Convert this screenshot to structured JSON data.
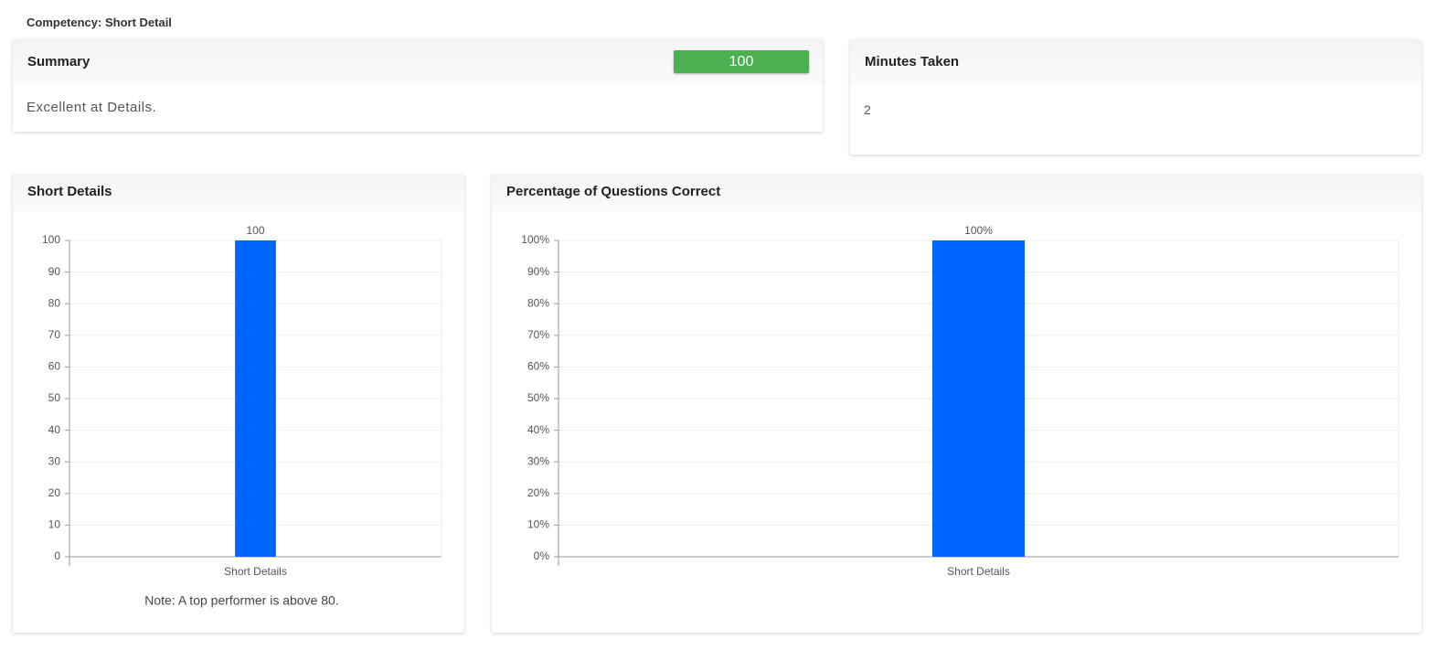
{
  "header": {
    "title": "Competency: Short Detail"
  },
  "summary": {
    "title": "Summary",
    "score": 100,
    "text": "Excellent at Details."
  },
  "minutes": {
    "title": "Minutes Taken",
    "value": 2
  },
  "chart_data": [
    {
      "type": "bar",
      "title": "Short Details",
      "categories": [
        "Short Details"
      ],
      "values": [
        100
      ],
      "color": "#0066ff",
      "ylim": [
        0,
        100
      ],
      "yticks": [
        0,
        10,
        20,
        30,
        40,
        50,
        60,
        70,
        80,
        90,
        100
      ],
      "grid": true,
      "note": "Note: A top performer is above 80."
    },
    {
      "type": "bar",
      "title": "Percentage of Questions Correct",
      "categories": [
        "Short Details"
      ],
      "values": [
        100
      ],
      "value_labels": [
        "100%"
      ],
      "color": "#0066ff",
      "ylim": [
        0,
        100
      ],
      "yticks": [
        {
          "value": 0,
          "label": "0%"
        },
        {
          "value": 10,
          "label": "10%"
        },
        {
          "value": 20,
          "label": "20%"
        },
        {
          "value": 30,
          "label": "30%"
        },
        {
          "value": 40,
          "label": "40%"
        },
        {
          "value": 50,
          "label": "50%"
        },
        {
          "value": 60,
          "label": "60%"
        },
        {
          "value": 70,
          "label": "70%"
        },
        {
          "value": 80,
          "label": "80%"
        },
        {
          "value": 90,
          "label": "90%"
        },
        {
          "value": 100,
          "label": "100%"
        }
      ],
      "grid": true
    }
  ]
}
